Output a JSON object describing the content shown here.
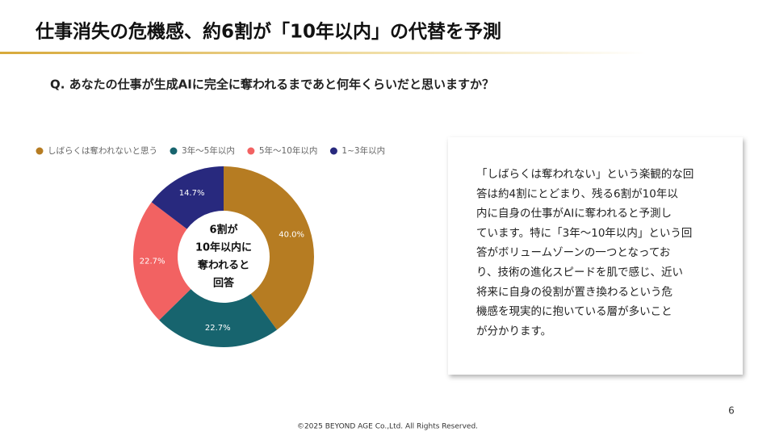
{
  "slide": {
    "title": "仕事消失の危機感、約6割が「10年以内」の代替を予測",
    "question": "Q. あなたの仕事が生成AIに完全に奪われるまであと何年くらいだと思いますか？",
    "body": [
      "「しばらくは奪われない」という楽観的な回",
      "答は約4割にとどまり、残る6割が10年以",
      "内に自身の仕事がAIに奪われると予測し",
      "ています。特に「3年～10年以内」という回",
      "答がボリュームゾーンの一つとなってお",
      "り、技術の進化スピードを肌で感じ、近い",
      "将来に自身の役割が置き換わるという危",
      "機感を現実的に抱いている層が多いこと",
      "が分かります。"
    ],
    "page_number": "6",
    "footer": "©2025 BEYOND AGE Co.,Ltd. All Rights Reserved."
  },
  "chart_data": {
    "type": "donut",
    "categories": [
      "しばらくは奪われないと思う",
      "3年～5年以内",
      "5年～10年以内",
      "1~3年以内"
    ],
    "values": [
      40.0,
      22.7,
      22.7,
      14.7
    ],
    "value_labels": [
      "40.0%",
      "22.7%",
      "22.7%",
      "14.7%"
    ],
    "colors": [
      "#b67c22",
      "#17646e",
      "#f26262",
      "#28297e"
    ],
    "annotation": [
      "6割が",
      "10年以内に",
      "奪われると",
      "回答"
    ]
  }
}
